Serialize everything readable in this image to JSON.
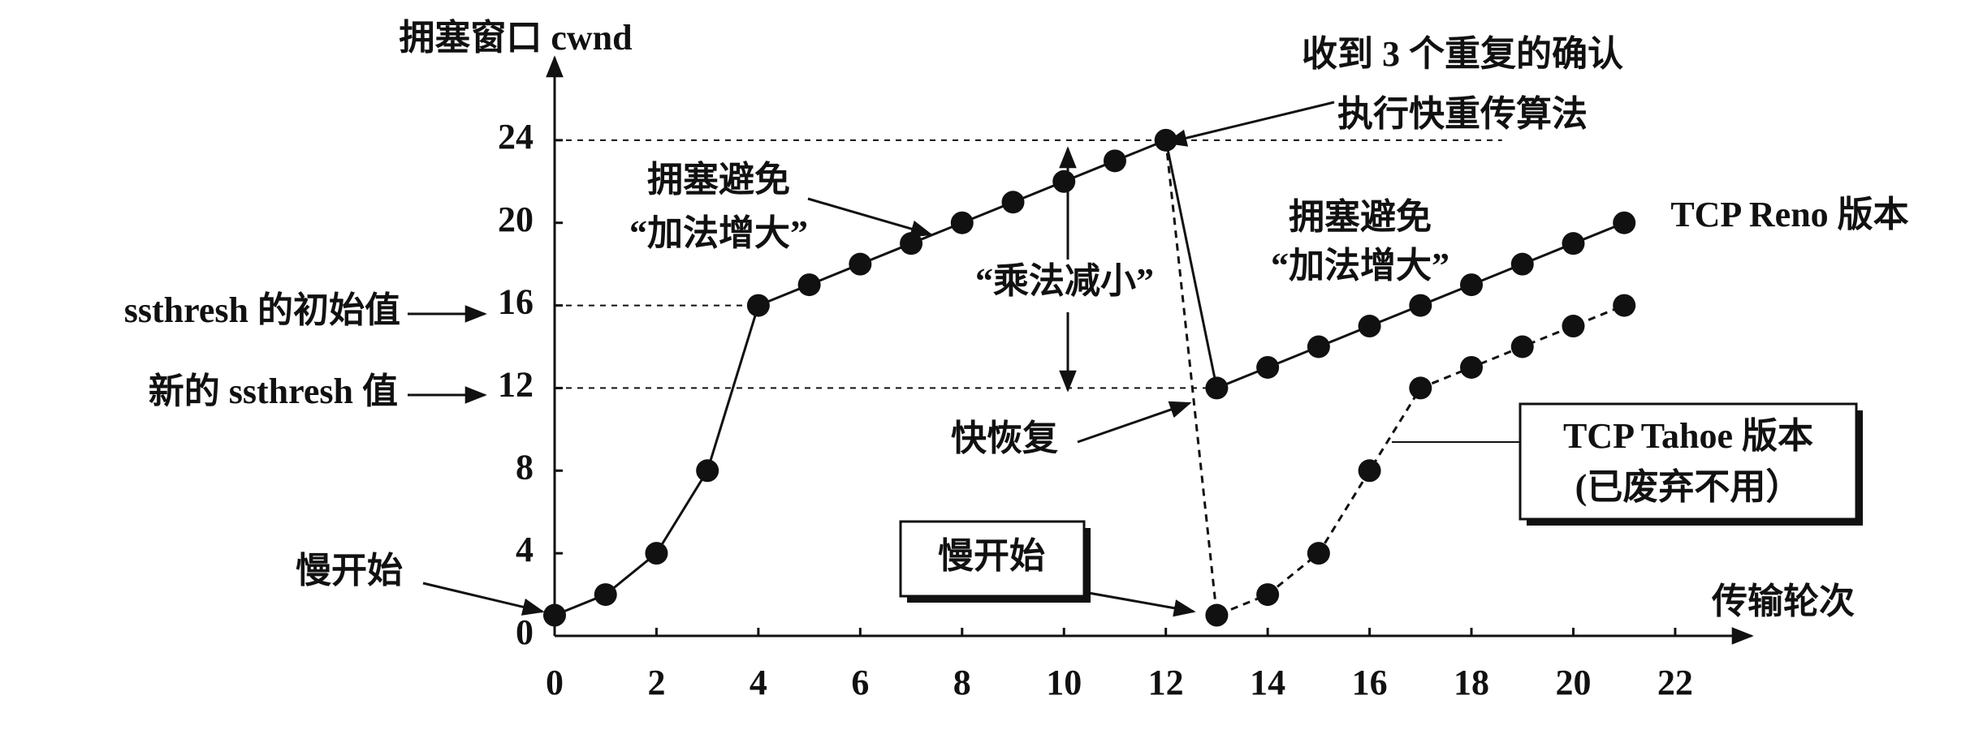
{
  "chart_data": {
    "type": "line",
    "y_label": "拥塞窗口 cwnd",
    "x_label": "传输轮次",
    "xlim": [
      0,
      23.5
    ],
    "ylim": [
      0,
      28
    ],
    "xticks": [
      0,
      2,
      4,
      6,
      8,
      10,
      12,
      14,
      16,
      18,
      20,
      22
    ],
    "yticks": [
      0,
      4,
      8,
      12,
      16,
      20,
      24
    ],
    "grid": false,
    "series": [
      {
        "name": "TCP Reno 版本",
        "color": "#111111",
        "line_style": "solid",
        "x": [
          0,
          1,
          2,
          3,
          4,
          5,
          6,
          7,
          8,
          9,
          10,
          11,
          12,
          13,
          14,
          15,
          16,
          17,
          18,
          19,
          20,
          21
        ],
        "values": [
          1,
          2,
          4,
          8,
          16,
          17,
          18,
          19,
          20,
          21,
          22,
          23,
          24,
          12,
          13,
          14,
          15,
          16,
          17,
          18,
          19,
          20
        ]
      },
      {
        "name": "TCP Tahoe 版本",
        "color": "#111111",
        "line_style": "dashed",
        "x": [
          12,
          13,
          14,
          15,
          16,
          17,
          18,
          19,
          20,
          21
        ],
        "values": [
          24,
          1,
          2,
          4,
          8,
          12,
          13,
          14,
          15,
          16
        ]
      }
    ],
    "annotations": [
      "收到 3 个重复的确认",
      "执行快重传算法",
      "拥塞避免",
      "“加法增大”",
      "“乘法减小”",
      "拥塞避免",
      "“加法增大”",
      "ssthresh 的初始值",
      "新的 ssthresh 值",
      "慢开始",
      "慢开始",
      "快恢复",
      "(已废弃不用）"
    ]
  }
}
